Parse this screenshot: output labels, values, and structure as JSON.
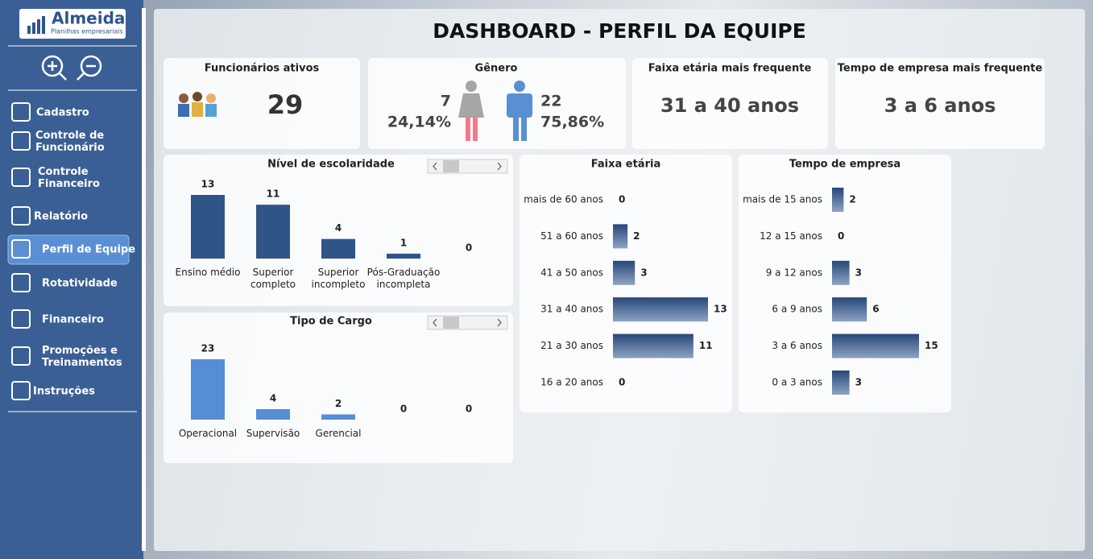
{
  "sidebar": {
    "logo": {
      "name": "Almeida",
      "tagline": "Planilhas empresariais"
    },
    "menu": [
      [
        "Cadastro"
      ],
      [
        "Controle de",
        "Funcionário"
      ],
      [
        "Controle",
        "Financeiro"
      ],
      [
        "Relatório"
      ],
      [
        "Perfil de Equipe"
      ],
      [
        "Rotatividade"
      ],
      [
        "Financeiro"
      ],
      [
        "Promoções e",
        "Treinamentos"
      ],
      [
        "Instruções"
      ]
    ]
  },
  "title": "DASHBOARD - PERFIL DA EQUIPE",
  "kpis": {
    "active": {
      "label": "Funcionários ativos",
      "value": 29
    },
    "gender": {
      "label": "Gênero",
      "female": {
        "count": 7,
        "percent": "24,14%"
      },
      "male": {
        "count": 22,
        "percent": "75,86%"
      }
    },
    "age_mode": {
      "label": "Faixa etária mais frequente",
      "value": "31 a 40 anos"
    },
    "tenure_mode": {
      "label": "Tempo de empresa mais frequente",
      "value": "3 a 6 anos"
    }
  },
  "charts": [
    {
      "type": "bar",
      "title": "Nível de escolaridade",
      "categories": [
        "Ensino médio",
        "Superior completo",
        "Superior incompleto",
        "Pós-Graduação incompleta",
        null
      ],
      "values": [
        13,
        11,
        4,
        1,
        0
      ],
      "color": "#2f5487"
    },
    {
      "type": "bar",
      "title": "Tipo de Cargo",
      "categories": [
        "Operacional",
        "Supervisão",
        "Gerencial",
        null,
        null
      ],
      "values": [
        23,
        4,
        2,
        0,
        0
      ],
      "color": "#558ed5"
    },
    {
      "type": "hbar",
      "title": "Faixa etária",
      "categories": [
        "mais de 60 anos",
        "51 a 60 anos",
        "41 a 50 anos",
        "31 a 40 anos",
        "21 a 30 anos",
        "16 a 20 anos"
      ],
      "values": [
        0,
        2,
        3,
        13,
        11,
        0
      ],
      "color": "#2f5487"
    },
    {
      "type": "hbar",
      "title": "Tempo de empresa",
      "categories": [
        "mais de 15 anos",
        "12 a 15 anos",
        "9 a 12 anos",
        "6 a 9 anos",
        "3 a 6 anos",
        "0 a 3 anos"
      ],
      "values": [
        2,
        0,
        3,
        6,
        15,
        3
      ],
      "color": "#2f5487"
    }
  ]
}
